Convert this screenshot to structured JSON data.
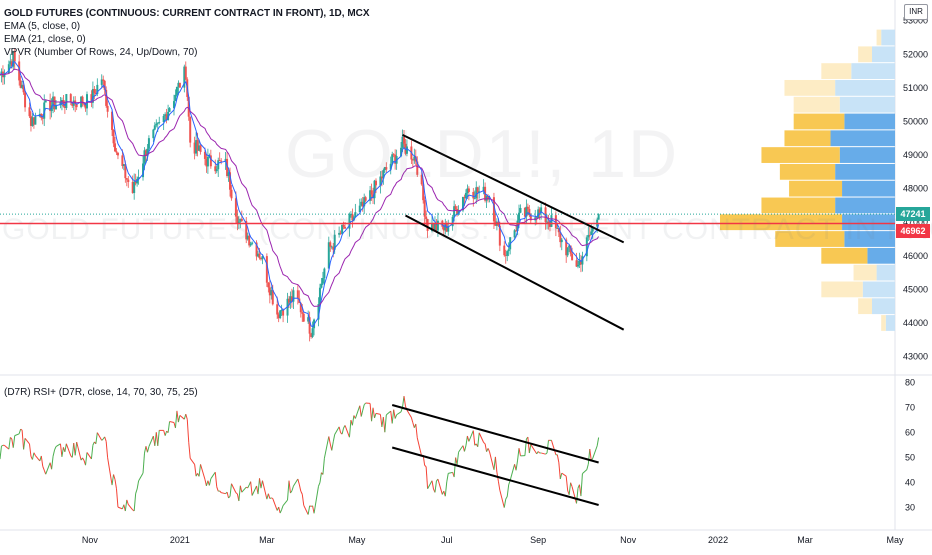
{
  "legend": {
    "title": "GOLD FUTURES (CONTINUOUS: CURRENT CONTRACT IN FRONT), 1D, MCX",
    "ema5": "EMA (5, close, 0)",
    "ema21": "EMA (21, close, 0)",
    "vpvr": "VPVR (Number Of Rows, 24, Up/Down, 70)",
    "rsi": "(D7R) RSI+ (D7R, close, 14, 70, 30, 75, 25)"
  },
  "watermark": {
    "symbol": "GOLD1!, 1D",
    "name": "GOLD FUTURES (CONTINUOUS: CURRENT CONTRACT IN FRONT)"
  },
  "currency": "INR",
  "colors": {
    "up": "#26a69a",
    "down": "#ef5350",
    "ema5": "#2962ff",
    "ema21": "#9c27b0",
    "current_price": "#26a69a",
    "hline": "#f23645",
    "vpvr_up": "#5fa8e8",
    "vpvr_down": "#f8c54a",
    "vpvr_up_light": "#c5e1f7",
    "vpvr_down_light": "#fdebc2",
    "rsi_up": "#4caf50",
    "rsi_down": "#f44336"
  },
  "chart_data": [
    {
      "type": "candlestick",
      "y_axis_ticks": [
        43000,
        44000,
        45000,
        46000,
        47000,
        48000,
        49000,
        50000,
        51000,
        52000,
        53000
      ],
      "ylim": [
        42600,
        53200
      ],
      "x_axis_labels": [
        "Nov",
        "2021",
        "Mar",
        "May",
        "Jul",
        "Sep",
        "Nov",
        "2022",
        "Mar",
        "May"
      ],
      "x_axis_dates": [
        "2020-11-01",
        "2021-01-01",
        "2021-03-01",
        "2021-05-01",
        "2021-07-01",
        "2021-09-01",
        "2021-11-01",
        "2022-01-01",
        "2022-03-01",
        "2022-05-01"
      ],
      "xlim": [
        "2020-09-01",
        "2022-05-01"
      ],
      "current_price": 47241,
      "horizontal_line": 46962,
      "price_path": [
        [
          "2020-09-01",
          51400
        ],
        [
          "2020-09-10",
          51900
        ],
        [
          "2020-09-22",
          50000
        ],
        [
          "2020-10-05",
          50500
        ],
        [
          "2020-10-20",
          50600
        ],
        [
          "2020-11-01",
          50600
        ],
        [
          "2020-11-09",
          51300
        ],
        [
          "2020-11-20",
          48900
        ],
        [
          "2020-11-30",
          47900
        ],
        [
          "2020-12-10",
          49300
        ],
        [
          "2020-12-20",
          50000
        ],
        [
          "2021-01-05",
          51500
        ],
        [
          "2021-01-08",
          49400
        ],
        [
          "2021-01-20",
          48800
        ],
        [
          "2021-02-01",
          48700
        ],
        [
          "2021-02-10",
          47000
        ],
        [
          "2021-02-25",
          46000
        ],
        [
          "2021-03-08",
          44300
        ],
        [
          "2021-03-20",
          44800
        ],
        [
          "2021-03-31",
          43800
        ],
        [
          "2021-04-12",
          46200
        ],
        [
          "2021-04-26",
          47000
        ],
        [
          "2021-05-06",
          47500
        ],
        [
          "2021-05-20",
          48500
        ],
        [
          "2021-06-01",
          49300
        ],
        [
          "2021-06-10",
          48900
        ],
        [
          "2021-06-18",
          46900
        ],
        [
          "2021-06-30",
          46800
        ],
        [
          "2021-07-15",
          48000
        ],
        [
          "2021-07-30",
          47800
        ],
        [
          "2021-08-09",
          46000
        ],
        [
          "2021-08-20",
          47200
        ],
        [
          "2021-08-31",
          47300
        ],
        [
          "2021-09-10",
          47000
        ],
        [
          "2021-09-20",
          46200
        ],
        [
          "2021-09-28",
          45700
        ],
        [
          "2021-10-05",
          46500
        ],
        [
          "2021-10-12",
          47241
        ]
      ],
      "ema_periods": [
        5,
        21
      ],
      "trendlines": [
        {
          "from": [
            "2021-06-01",
            49600
          ],
          "to": [
            "2021-10-29",
            46400
          ]
        },
        {
          "from": [
            "2021-06-03",
            47200
          ],
          "to": [
            "2021-10-29",
            43800
          ]
        }
      ]
    },
    {
      "type": "bar",
      "name": "VPVR",
      "orientation": "horizontal",
      "rows": [
        {
          "price": 52500,
          "up": 300,
          "down": 100
        },
        {
          "price": 52000,
          "up": 500,
          "down": 300
        },
        {
          "price": 51500,
          "up": 950,
          "down": 650
        },
        {
          "price": 51000,
          "up": 1300,
          "down": 1100
        },
        {
          "price": 50500,
          "up": 1200,
          "down": 1000
        },
        {
          "price": 50000,
          "up": 1100,
          "down": 1100
        },
        {
          "price": 49500,
          "up": 1400,
          "down": 1000
        },
        {
          "price": 49000,
          "up": 1200,
          "down": 1700
        },
        {
          "price": 48500,
          "up": 1300,
          "down": 1200
        },
        {
          "price": 48000,
          "up": 1150,
          "down": 1150
        },
        {
          "price": 47500,
          "up": 1300,
          "down": 1600
        },
        {
          "price": 47000,
          "up": 1150,
          "down": 2650
        },
        {
          "price": 46500,
          "up": 1100,
          "down": 1500
        },
        {
          "price": 46000,
          "up": 600,
          "down": 1000
        },
        {
          "price": 45500,
          "up": 400,
          "down": 500
        },
        {
          "price": 45000,
          "up": 700,
          "down": 900
        },
        {
          "price": 44500,
          "up": 500,
          "down": 300
        },
        {
          "price": 44000,
          "up": 200,
          "down": 100
        }
      ]
    },
    {
      "type": "line",
      "name": "RSI",
      "y_axis_ticks": [
        30,
        40,
        50,
        60,
        70,
        80
      ],
      "ylim": [
        25,
        81
      ],
      "rsi_path": [
        [
          "2020-09-01",
          52
        ],
        [
          "2020-09-15",
          58
        ],
        [
          "2020-10-01",
          46
        ],
        [
          "2020-10-15",
          55
        ],
        [
          "2020-11-01",
          50
        ],
        [
          "2020-11-09",
          60
        ],
        [
          "2020-11-20",
          33
        ],
        [
          "2020-11-30",
          28
        ],
        [
          "2020-12-10",
          55
        ],
        [
          "2020-12-20",
          58
        ],
        [
          "2021-01-05",
          70
        ],
        [
          "2021-01-08",
          48
        ],
        [
          "2021-01-20",
          42
        ],
        [
          "2021-02-10",
          35
        ],
        [
          "2021-02-25",
          38
        ],
        [
          "2021-03-08",
          29
        ],
        [
          "2021-03-20",
          42
        ],
        [
          "2021-03-31",
          27
        ],
        [
          "2021-04-12",
          55
        ],
        [
          "2021-04-26",
          62
        ],
        [
          "2021-05-06",
          70
        ],
        [
          "2021-05-20",
          64
        ],
        [
          "2021-06-01",
          72
        ],
        [
          "2021-06-10",
          60
        ],
        [
          "2021-06-18",
          40
        ],
        [
          "2021-06-30",
          38
        ],
        [
          "2021-07-15",
          58
        ],
        [
          "2021-07-30",
          56
        ],
        [
          "2021-08-09",
          32
        ],
        [
          "2021-08-20",
          54
        ],
        [
          "2021-08-31",
          55
        ],
        [
          "2021-09-10",
          53
        ],
        [
          "2021-09-20",
          40
        ],
        [
          "2021-09-28",
          34
        ],
        [
          "2021-10-05",
          50
        ],
        [
          "2021-10-12",
          58
        ]
      ],
      "trendlines": [
        {
          "from": [
            "2021-05-25",
            71
          ],
          "to": [
            "2021-10-12",
            48
          ]
        },
        {
          "from": [
            "2021-05-25",
            54
          ],
          "to": [
            "2021-10-12",
            31
          ]
        }
      ]
    }
  ]
}
